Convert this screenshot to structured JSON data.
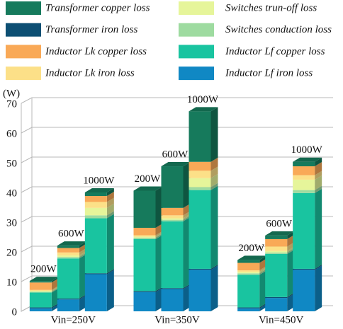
{
  "chart_data": {
    "type": "bar",
    "stacked": true,
    "y_label": "(W)",
    "categories": [
      "200W",
      "600W",
      "1000W",
      "200W",
      "600W",
      "1000W",
      "200W",
      "600W",
      "1000W"
    ],
    "group_labels": [
      "Vin=250V",
      "Vin=350V",
      "Vin=450V"
    ],
    "ylim": [
      0,
      70
    ],
    "yticks": [
      0,
      10,
      20,
      30,
      40,
      50,
      60,
      70
    ],
    "grid": true,
    "series": [
      {
        "name": "Inductor Lf iron loss",
        "color": "#1088c4",
        "values": [
          1,
          4,
          12.5,
          6.5,
          7.5,
          14,
          1,
          4.5,
          14
        ]
      },
      {
        "name": "Transformer iron loss",
        "color": "#0d4f73",
        "values": [
          0.3,
          0.3,
          0.3,
          0.3,
          0.3,
          0.3,
          0.3,
          0.3,
          0.3
        ]
      },
      {
        "name": "Inductor Lf copper loss",
        "color": "#19c4a0",
        "values": [
          5,
          13.5,
          18.5,
          17.5,
          22.5,
          26.5,
          11,
          14.5,
          25.5
        ]
      },
      {
        "name": "Switches conduction loss",
        "color": "#9edba0",
        "values": [
          0.3,
          0.5,
          1,
          0.5,
          0.5,
          1,
          0.5,
          0.5,
          1
        ]
      },
      {
        "name": "Switches trun-off loss",
        "color": "#e6f59a",
        "values": [
          0.3,
          0.5,
          2.5,
          0.3,
          0.5,
          3,
          0.5,
          0.5,
          3.5
        ]
      },
      {
        "name": "Inductor Lk iron loss",
        "color": "#fce088",
        "values": [
          0.3,
          1,
          2,
          0.5,
          1,
          2.5,
          0.5,
          1.5,
          1.5
        ]
      },
      {
        "name": "Inductor Lk copper loss",
        "color": "#f9a957",
        "values": [
          2.5,
          1.5,
          2,
          2.5,
          2.5,
          3,
          2.5,
          2.5,
          3
        ]
      },
      {
        "name": "Transformer copper loss",
        "color": "#167a5c",
        "values": [
          0.5,
          0.8,
          1.2,
          12.5,
          14,
          17,
          1,
          1.2,
          1.5
        ]
      }
    ]
  }
}
